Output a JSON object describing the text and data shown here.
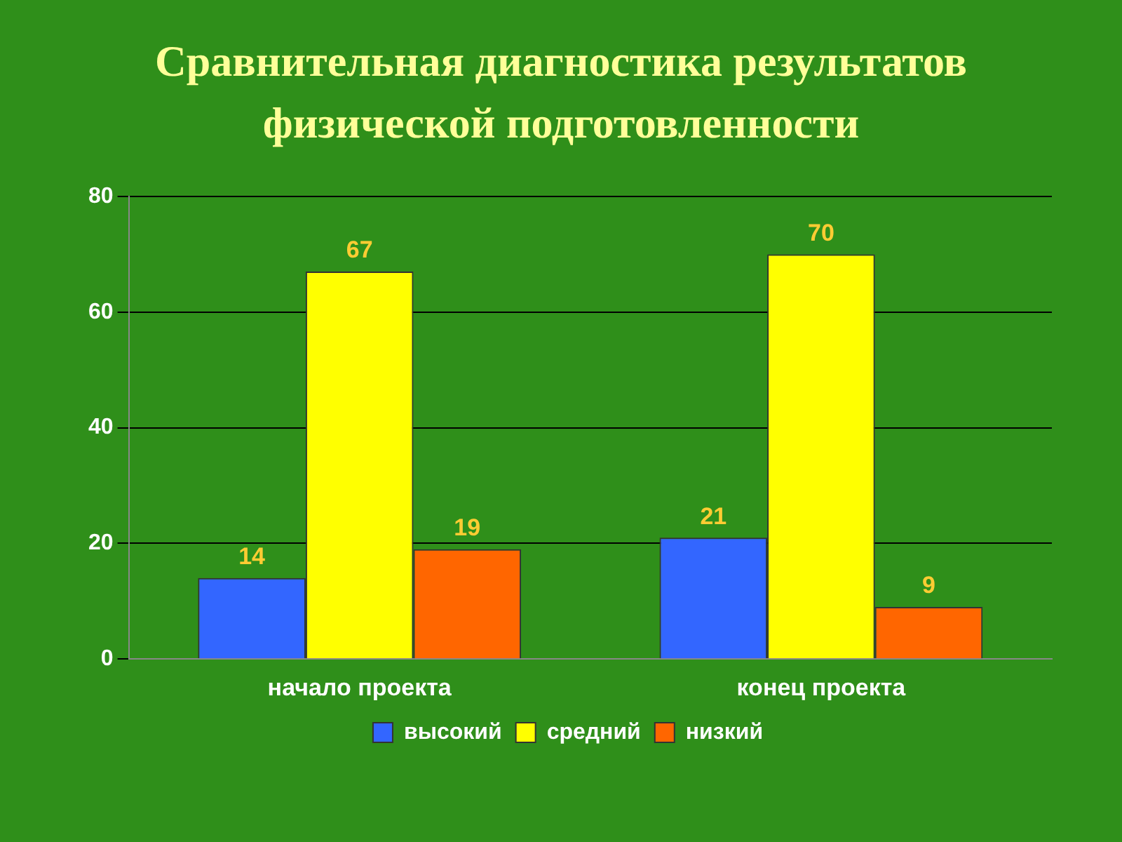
{
  "chart_data": {
    "type": "bar",
    "title": "Сравнительная диагностика результатов физической подготовленности",
    "categories": [
      "начало проекта",
      "конец проекта"
    ],
    "series": [
      {
        "name": "высокий",
        "color": "#3366ff",
        "values": [
          14,
          21
        ]
      },
      {
        "name": "средний",
        "color": "#ffff00",
        "values": [
          67,
          70
        ]
      },
      {
        "name": "низкий",
        "color": "#ff6600",
        "values": [
          19,
          9
        ]
      }
    ],
    "ylim": [
      0,
      80
    ],
    "yticks": [
      0,
      20,
      40,
      60,
      80
    ],
    "grid": "y",
    "legend": "bottom",
    "data_labels": true
  }
}
